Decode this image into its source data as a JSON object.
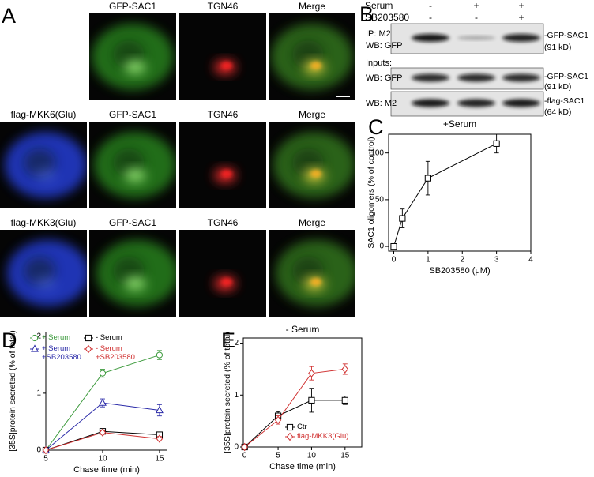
{
  "panel_labels": [
    "A",
    "B",
    "C",
    "D",
    "E"
  ],
  "panel_a": {
    "rows": [
      {
        "labels": [
          "GFP-SAC1",
          "TGN46",
          "Merge"
        ]
      },
      {
        "labels": [
          "flag-MKK6(Glu)",
          "GFP-SAC1",
          "TGN46",
          "Merge"
        ]
      },
      {
        "labels": [
          "flag-MKK3(Glu)",
          "GFP-SAC1",
          "TGN46",
          "Merge"
        ]
      }
    ]
  },
  "panel_b": {
    "conditions": [
      {
        "name": "Serum",
        "marks": [
          "-",
          "+",
          "+"
        ]
      },
      {
        "name": "SB203580",
        "marks": [
          "-",
          "-",
          "+"
        ]
      }
    ],
    "inputs_label": "Inputs:",
    "blots": [
      {
        "labels": [
          "IP: M2",
          "WB: GFP"
        ],
        "band": [
          "-GFP-SAC1",
          "(91 kD)"
        ]
      },
      {
        "labels": [
          "WB: GFP"
        ],
        "band": [
          "-GFP-SAC1",
          "(91 kD)"
        ]
      },
      {
        "labels": [
          "WB: M2"
        ],
        "band": [
          "-flag-SAC1",
          "(64 kD)"
        ]
      }
    ]
  },
  "chart_data": [
    {
      "type": "line",
      "title": "+Serum",
      "x_label": "SB203580 (μM)",
      "y_label": "SAC1 oligomers (% of control)",
      "x": [
        0,
        0.25,
        1,
        3
      ],
      "xlim": [
        -0.15,
        4
      ],
      "ylim": [
        -5,
        120
      ],
      "xticks": [
        0,
        1,
        2,
        3,
        4
      ],
      "yticks": [
        0,
        50,
        100
      ],
      "series": [
        {
          "color": "#000000",
          "marker": "square",
          "values": [
            0,
            30,
            73,
            110
          ],
          "errors": [
            0,
            10,
            18,
            10
          ]
        }
      ]
    },
    {
      "type": "line",
      "x_label": "Chase time (min)",
      "y_label": "[35S]protein secreted (% of total)",
      "x": [
        5,
        10,
        15
      ],
      "xlim": [
        5,
        15.7
      ],
      "ylim": [
        0,
        2.08
      ],
      "xticks": [
        5,
        10,
        15
      ],
      "yticks": [
        0,
        1,
        2
      ],
      "series": [
        {
          "name": "+ Serum",
          "color": "#3c9a3c",
          "marker": "circle",
          "values": [
            0,
            1.35,
            1.67
          ],
          "errors": [
            0,
            0.07,
            0.08
          ]
        },
        {
          "name": "- Serum",
          "color": "#000000",
          "marker": "square",
          "values": [
            0,
            0.33,
            0.27
          ],
          "errors": [
            0,
            0.03,
            0.05
          ]
        },
        {
          "name": "+ Serum\n+SB203580",
          "color": "#2a2aa8",
          "marker": "triangle",
          "values": [
            0,
            0.83,
            0.7
          ],
          "errors": [
            0,
            0.07,
            0.1
          ]
        },
        {
          "name": "- Serum\n+SB203580",
          "color": "#d03030",
          "marker": "diamond",
          "values": [
            0,
            0.31,
            0.2
          ],
          "errors": [
            0,
            0.03,
            0.04
          ]
        }
      ]
    },
    {
      "type": "line",
      "title": "- Serum",
      "x_label": "Chase time (min)",
      "y_label": "[35S]protein secreted (% of total)",
      "x": [
        0,
        5,
        10,
        15
      ],
      "xlim": [
        -0.2,
        17.5
      ],
      "ylim": [
        0,
        2.1
      ],
      "xticks": [
        0,
        5,
        10,
        15
      ],
      "yticks": [
        0,
        1,
        2
      ],
      "series": [
        {
          "name": "Ctr",
          "color": "#000000",
          "marker": "square",
          "values": [
            0,
            0.6,
            0.9,
            0.9
          ],
          "errors": [
            0,
            0.08,
            0.23,
            0.08
          ]
        },
        {
          "name": "flag-MKK3(Glu)",
          "color": "#d03030",
          "marker": "diamond",
          "values": [
            0,
            0.52,
            1.42,
            1.5
          ],
          "errors": [
            0,
            0.08,
            0.13,
            0.1
          ]
        }
      ]
    }
  ]
}
